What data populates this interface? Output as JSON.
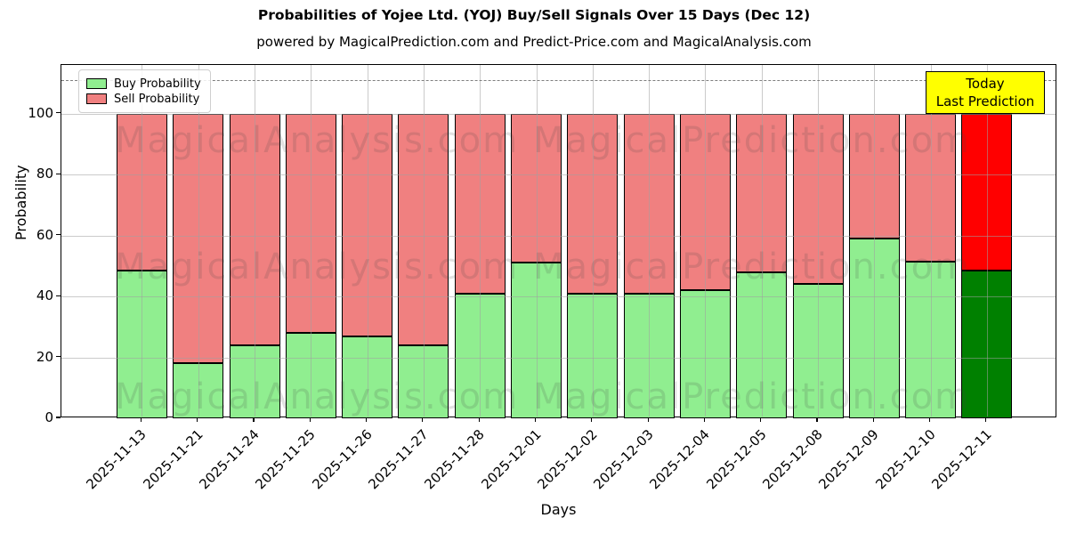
{
  "header": {
    "title": "Probabilities of Yojee Ltd. (YOJ) Buy/Sell Signals Over 15 Days (Dec 12)",
    "subtitle": "powered by MagicalPrediction.com and Predict-Price.com and MagicalAnalysis.com"
  },
  "chart_data": {
    "type": "bar",
    "stacked": true,
    "title": "Probabilities of Yojee Ltd. (YOJ) Buy/Sell Signals Over 15 Days (Dec 12)",
    "xlabel": "Days",
    "ylabel": "Probability",
    "categories": [
      "2025-11-13",
      "2025-11-21",
      "2025-11-24",
      "2025-11-25",
      "2025-11-26",
      "2025-11-27",
      "2025-11-28",
      "2025-12-01",
      "2025-12-02",
      "2025-12-03",
      "2025-12-04",
      "2025-12-05",
      "2025-12-08",
      "2025-12-09",
      "2025-12-10",
      "2025-12-11"
    ],
    "series": [
      {
        "name": "Buy Probability",
        "color": "#90EE90",
        "values": [
          48.5,
          18,
          24,
          28,
          27,
          24,
          41,
          51,
          41,
          41,
          42,
          48,
          44,
          59,
          51.5,
          48.5
        ]
      },
      {
        "name": "Sell Probability",
        "color": "#F08080",
        "values": [
          51.5,
          82,
          76,
          72,
          73,
          76,
          59,
          49,
          59,
          59,
          58,
          52,
          56,
          41,
          48.5,
          51.5
        ]
      }
    ],
    "today_bar": {
      "index": 15,
      "buy_color": "#008000",
      "sell_color": "#FF0000"
    },
    "bar_edge_color": "#000000",
    "yticks": [
      0,
      20,
      40,
      60,
      80,
      100
    ],
    "ylim": [
      0,
      116
    ],
    "dashed_line_y": 111,
    "grid": true,
    "legend_position": "upper-left"
  },
  "legend": {
    "items": [
      {
        "label": "Buy Probability",
        "color": "#90EE90"
      },
      {
        "label": "Sell Probability",
        "color": "#F08080"
      }
    ]
  },
  "annotation": {
    "line1": "Today",
    "line2": "Last Prediction",
    "bg_color": "#FFFF00"
  },
  "watermarks": {
    "left_text": "MagicalAnalysis.com",
    "right_text": "MagicalPrediction.com"
  },
  "axes": {
    "xlabel": "Days",
    "ylabel": "Probability"
  }
}
